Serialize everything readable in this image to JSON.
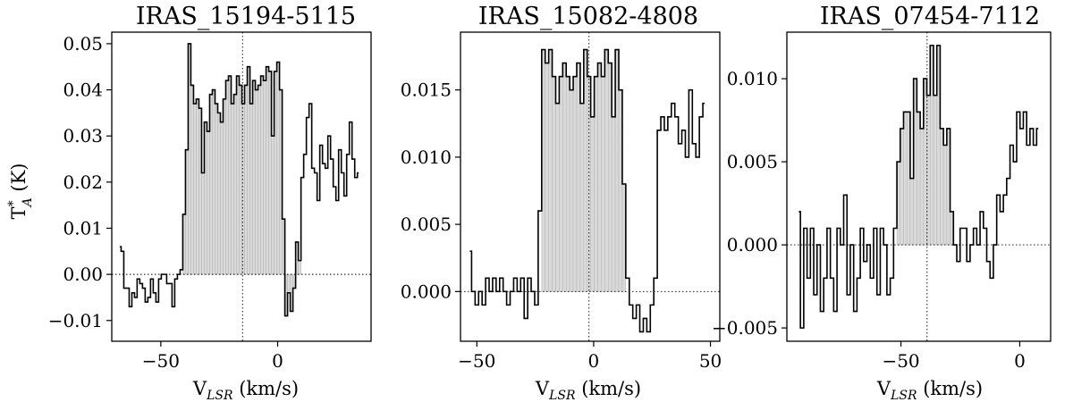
{
  "figure": {
    "ylabel_main": "T",
    "ylabel_sup": "*",
    "ylabel_sub": "A",
    "ylabel_unit": " (K)",
    "xlabel_main": "V",
    "xlabel_sub": "LSR",
    "xlabel_unit": " (km/s)"
  },
  "chart_data": [
    {
      "type": "line",
      "drawstyle": "steps-mid",
      "title": "IRAS_15194-5115",
      "xlabel": "V_LSR (km/s)",
      "ylabel": "T*_A (K)",
      "xlim": [
        -71,
        40
      ],
      "ylim": [
        -0.0145,
        0.0525
      ],
      "xticks": [
        -50,
        0
      ],
      "xtick_labels": [
        "−50",
        "0"
      ],
      "yticks": [
        -0.01,
        0.0,
        0.01,
        0.02,
        0.03,
        0.04,
        0.05
      ],
      "ytick_labels": [
        "−0.01",
        "0.00",
        "0.01",
        "0.02",
        "0.03",
        "0.04",
        "0.05"
      ],
      "vline": -15,
      "hline": 0,
      "fill_range": [
        -41,
        10
      ],
      "x": [
        -67.6,
        -66.4,
        -65.3,
        -64.1,
        -63.0,
        -61.8,
        -60.7,
        -59.6,
        -58.4,
        -57.3,
        -56.1,
        -55.0,
        -53.8,
        -52.7,
        -51.5,
        -50.4,
        -49.2,
        -48.1,
        -46.9,
        -45.8,
        -44.6,
        -43.5,
        -42.3,
        -41.2,
        -40.0,
        -38.9,
        -37.7,
        -36.6,
        -35.4,
        -34.3,
        -33.1,
        -32.0,
        -30.8,
        -29.7,
        -28.5,
        -27.4,
        -26.2,
        -25.1,
        -23.9,
        -22.8,
        -21.6,
        -20.5,
        -19.3,
        -18.2,
        -17.0,
        -15.9,
        -14.7,
        -13.6,
        -12.4,
        -11.3,
        -10.1,
        -9.0,
        -7.8,
        -6.7,
        -5.5,
        -4.4,
        -3.2,
        -2.1,
        -0.9,
        0.2,
        1.4,
        2.5,
        3.7,
        4.8,
        6.0,
        7.1,
        8.3,
        9.4,
        10.6,
        11.7,
        12.9,
        14.0,
        15.2,
        16.3,
        17.5,
        18.6,
        19.8,
        20.9,
        22.1,
        23.2,
        24.4,
        25.5,
        26.7,
        27.8,
        29.0,
        30.1,
        31.3,
        32.4,
        33.6,
        34.7
      ],
      "y": [
        0.006,
        0.005,
        -0.003,
        -0.003,
        -0.007,
        -0.004,
        -0.005,
        -0.001,
        -0.002,
        -0.003,
        -0.006,
        -0.005,
        -0.001,
        -0.004,
        -0.006,
        -0.001,
        0.0,
        0.0,
        -0.002,
        -0.002,
        -0.007,
        -0.001,
        0.0,
        0.001,
        0.013,
        0.027,
        0.05,
        0.041,
        0.037,
        0.038,
        0.036,
        0.022,
        0.033,
        0.031,
        0.039,
        0.04,
        0.037,
        0.035,
        0.033,
        0.038,
        0.042,
        0.043,
        0.037,
        0.039,
        0.043,
        0.041,
        0.037,
        0.041,
        0.045,
        0.037,
        0.042,
        0.04,
        0.041,
        0.043,
        0.042,
        0.045,
        0.044,
        0.03,
        0.044,
        0.046,
        0.04,
        0.012,
        -0.009,
        -0.004,
        -0.008,
        -0.003,
        0.007,
        0.003,
        0.021,
        0.026,
        0.034,
        0.037,
        0.023,
        0.022,
        0.016,
        0.028,
        0.024,
        0.023,
        0.03,
        0.025,
        0.019,
        0.016,
        0.027,
        0.022,
        0.017,
        0.026,
        0.033,
        0.025,
        0.021,
        0.022
      ]
    },
    {
      "type": "line",
      "drawstyle": "steps-mid",
      "title": "IRAS_15082-4808",
      "xlabel": "V_LSR (km/s)",
      "ylabel": "",
      "xlim": [
        -57,
        54
      ],
      "ylim": [
        -0.0037,
        0.0193
      ],
      "xticks": [
        -50,
        0,
        50
      ],
      "xtick_labels": [
        "−50",
        "0",
        "50"
      ],
      "yticks": [
        0.0,
        0.005,
        0.01,
        0.015
      ],
      "ytick_labels": [
        "0.000",
        "0.005",
        "0.010",
        "0.015"
      ],
      "vline": -2,
      "hline": 0,
      "fill_range": [
        -22,
        14
      ],
      "x": [
        -53,
        -51.5,
        -50,
        -48.5,
        -47,
        -45.5,
        -44,
        -42.5,
        -41,
        -39.5,
        -38,
        -36.5,
        -35,
        -33.5,
        -32,
        -30.5,
        -29,
        -27.5,
        -26,
        -24.5,
        -23,
        -21.5,
        -20,
        -18.5,
        -17,
        -15.5,
        -14,
        -12.5,
        -11,
        -9.5,
        -8,
        -6.5,
        -5,
        -3.5,
        -2,
        -0.5,
        1,
        2.5,
        4,
        5.5,
        7,
        8.5,
        10,
        11.5,
        13,
        14.5,
        16,
        17.5,
        19,
        20.5,
        22,
        23.5,
        25,
        26.5,
        28,
        29.5,
        31,
        32.5,
        34,
        35.5,
        37,
        38.5,
        40,
        41.5,
        43,
        44.5,
        46,
        47.5
      ],
      "y": [
        0.003,
        0.0,
        -0.001,
        0.0,
        -0.001,
        0.001,
        0.0,
        0.001,
        0.0,
        0.001,
        0.0,
        -0.001,
        0.0,
        0.001,
        0.0,
        0.001,
        -0.002,
        0.001,
        0.0,
        -0.001,
        0.006,
        0.018,
        0.017,
        0.018,
        0.016,
        0.014,
        0.016,
        0.017,
        0.016,
        0.015,
        0.016,
        0.017,
        0.014,
        0.018,
        0.016,
        0.013,
        0.016,
        0.017,
        0.016,
        0.018,
        0.017,
        0.013,
        0.018,
        0.015,
        0.008,
        0.001,
        -0.001,
        -0.002,
        -0.001,
        -0.003,
        -0.002,
        -0.003,
        -0.001,
        0.001,
        0.012,
        0.013,
        0.012,
        0.013,
        0.014,
        0.013,
        0.011,
        0.012,
        0.01,
        0.015,
        0.011,
        0.01,
        0.013,
        0.014
      ]
    },
    {
      "type": "line",
      "drawstyle": "steps-mid",
      "title": "IRAS_07454-7112",
      "xlabel": "V_LSR (km/s)",
      "ylabel": "",
      "xlim": [
        -98,
        13
      ],
      "ylim": [
        -0.0058,
        0.0128
      ],
      "xticks": [
        -50,
        0
      ],
      "xtick_labels": [
        "−50",
        "0"
      ],
      "yticks": [
        -0.005,
        0.0,
        0.005,
        0.01
      ],
      "ytick_labels": [
        "−0.005",
        "0.000",
        "0.005",
        "0.010"
      ],
      "vline": -39,
      "hline": 0,
      "fill_range": [
        -51,
        -28
      ],
      "x": [
        -93,
        -91.6,
        -90.2,
        -88.8,
        -87.4,
        -86,
        -84.6,
        -83.2,
        -81.8,
        -80.4,
        -79,
        -77.6,
        -76.2,
        -74.8,
        -73.4,
        -72,
        -70.6,
        -69.2,
        -67.8,
        -66.4,
        -65,
        -63.6,
        -62.2,
        -60.8,
        -59.4,
        -58,
        -56.6,
        -55.2,
        -53.8,
        -52.4,
        -51,
        -49.6,
        -48.2,
        -46.8,
        -45.4,
        -44,
        -42.6,
        -41.2,
        -39.8,
        -38.4,
        -37,
        -35.6,
        -34.2,
        -32.8,
        -31.4,
        -30,
        -28.6,
        -27.2,
        -25.8,
        -24.4,
        -23,
        -21.6,
        -20.2,
        -18.8,
        -17.4,
        -16,
        -14.6,
        -13.2,
        -11.8,
        -10.4,
        -9,
        -7.6,
        -6.2,
        -4.8,
        -3.4,
        -2,
        -0.6,
        0.8,
        2.2,
        3.6,
        5,
        6.4,
        7.8
      ],
      "y": [
        0.002,
        -0.005,
        0.001,
        -0.002,
        0.001,
        -0.003,
        0.0,
        -0.004,
        -0.002,
        0.001,
        -0.002,
        -0.004,
        0.001,
        0.0,
        0.003,
        -0.003,
        0.0,
        -0.004,
        -0.002,
        0.001,
        -0.001,
        0.0,
        -0.002,
        0.001,
        -0.003,
        0.001,
        0.0,
        -0.003,
        -0.002,
        0.001,
        0.005,
        0.007,
        0.008,
        0.008,
        0.004,
        0.01,
        0.008,
        0.007,
        0.01,
        0.009,
        0.012,
        0.009,
        0.012,
        0.007,
        0.006,
        0.007,
        0.002,
        0.0,
        -0.001,
        0.001,
        0.001,
        -0.001,
        0.0,
        0.001,
        0.0,
        0.002,
        0.001,
        -0.001,
        -0.002,
        0.0,
        0.003,
        0.002,
        0.003,
        0.004,
        0.006,
        0.005,
        0.008,
        0.007,
        0.008,
        0.006,
        0.007,
        0.006,
        0.007
      ]
    }
  ]
}
